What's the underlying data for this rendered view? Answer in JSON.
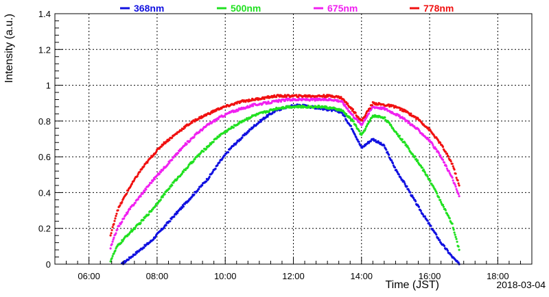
{
  "chart_data": {
    "type": "scatter",
    "title": "",
    "xlabel": "Time (JST)",
    "ylabel": "Intensity (a.u.)",
    "date_label": "2018-03-04",
    "xlim": [
      "05:00",
      "19:00"
    ],
    "ylim": [
      0,
      1.4
    ],
    "x_ticks": [
      "06:00",
      "08:00",
      "10:00",
      "12:00",
      "14:00",
      "16:00",
      "18:00"
    ],
    "y_ticks": [
      "0",
      "0.2",
      "0.4",
      "0.6",
      "0.8",
      "1",
      "1.2",
      "1.4"
    ],
    "grid": true,
    "legend_position": "top",
    "series": [
      {
        "name": "368nm",
        "color": "#1010e0",
        "points": [
          [
            "06:58",
            0.0
          ],
          [
            "07:30",
            0.08
          ],
          [
            "07:50",
            0.13
          ],
          [
            "08:10",
            0.2
          ],
          [
            "08:30",
            0.27
          ],
          [
            "08:50",
            0.34
          ],
          [
            "09:10",
            0.41
          ],
          [
            "09:30",
            0.48
          ],
          [
            "09:50",
            0.57
          ],
          [
            "10:10",
            0.65
          ],
          [
            "10:30",
            0.71
          ],
          [
            "10:50",
            0.77
          ],
          [
            "11:10",
            0.82
          ],
          [
            "11:30",
            0.86
          ],
          [
            "11:50",
            0.88
          ],
          [
            "12:10",
            0.89
          ],
          [
            "12:30",
            0.88
          ],
          [
            "12:50",
            0.87
          ],
          [
            "13:10",
            0.86
          ],
          [
            "13:25",
            0.85
          ],
          [
            "13:45",
            0.75
          ],
          [
            "14:00",
            0.65
          ],
          [
            "14:20",
            0.7
          ],
          [
            "14:40",
            0.66
          ],
          [
            "15:00",
            0.53
          ],
          [
            "15:20",
            0.43
          ],
          [
            "15:40",
            0.32
          ],
          [
            "16:00",
            0.22
          ],
          [
            "16:20",
            0.12
          ],
          [
            "16:40",
            0.04
          ],
          [
            "16:52",
            0.0
          ]
        ]
      },
      {
        "name": "500nm",
        "color": "#20e020",
        "points": [
          [
            "06:38",
            0.02
          ],
          [
            "06:50",
            0.1
          ],
          [
            "07:10",
            0.17
          ],
          [
            "07:30",
            0.23
          ],
          [
            "07:50",
            0.3
          ],
          [
            "08:10",
            0.38
          ],
          [
            "08:30",
            0.46
          ],
          [
            "08:50",
            0.53
          ],
          [
            "09:10",
            0.6
          ],
          [
            "09:30",
            0.66
          ],
          [
            "09:50",
            0.72
          ],
          [
            "10:10",
            0.76
          ],
          [
            "10:30",
            0.8
          ],
          [
            "10:50",
            0.83
          ],
          [
            "11:10",
            0.85
          ],
          [
            "11:30",
            0.87
          ],
          [
            "11:50",
            0.88
          ],
          [
            "12:10",
            0.88
          ],
          [
            "12:30",
            0.88
          ],
          [
            "12:50",
            0.88
          ],
          [
            "13:10",
            0.87
          ],
          [
            "13:25",
            0.86
          ],
          [
            "13:45",
            0.8
          ],
          [
            "14:00",
            0.72
          ],
          [
            "14:20",
            0.83
          ],
          [
            "14:40",
            0.82
          ],
          [
            "15:00",
            0.74
          ],
          [
            "15:20",
            0.66
          ],
          [
            "15:40",
            0.57
          ],
          [
            "16:00",
            0.47
          ],
          [
            "16:20",
            0.35
          ],
          [
            "16:40",
            0.22
          ],
          [
            "16:52",
            0.08
          ]
        ]
      },
      {
        "name": "675nm",
        "color": "#f020f0",
        "points": [
          [
            "06:38",
            0.09
          ],
          [
            "06:50",
            0.2
          ],
          [
            "07:10",
            0.3
          ],
          [
            "07:30",
            0.38
          ],
          [
            "07:50",
            0.46
          ],
          [
            "08:10",
            0.53
          ],
          [
            "08:30",
            0.6
          ],
          [
            "08:50",
            0.67
          ],
          [
            "09:10",
            0.73
          ],
          [
            "09:30",
            0.78
          ],
          [
            "09:50",
            0.82
          ],
          [
            "10:10",
            0.85
          ],
          [
            "10:30",
            0.87
          ],
          [
            "10:50",
            0.89
          ],
          [
            "11:10",
            0.9
          ],
          [
            "11:30",
            0.91
          ],
          [
            "11:50",
            0.92
          ],
          [
            "12:10",
            0.92
          ],
          [
            "12:30",
            0.92
          ],
          [
            "12:50",
            0.92
          ],
          [
            "13:10",
            0.92
          ],
          [
            "13:25",
            0.91
          ],
          [
            "13:45",
            0.83
          ],
          [
            "14:00",
            0.78
          ],
          [
            "14:20",
            0.88
          ],
          [
            "14:40",
            0.87
          ],
          [
            "15:00",
            0.84
          ],
          [
            "15:20",
            0.8
          ],
          [
            "15:40",
            0.75
          ],
          [
            "16:00",
            0.69
          ],
          [
            "16:20",
            0.6
          ],
          [
            "16:40",
            0.48
          ],
          [
            "16:52",
            0.38
          ]
        ]
      },
      {
        "name": "778nm",
        "color": "#f01010",
        "points": [
          [
            "06:38",
            0.16
          ],
          [
            "06:50",
            0.3
          ],
          [
            "07:10",
            0.42
          ],
          [
            "07:30",
            0.52
          ],
          [
            "07:50",
            0.6
          ],
          [
            "08:10",
            0.67
          ],
          [
            "08:30",
            0.72
          ],
          [
            "08:50",
            0.77
          ],
          [
            "09:10",
            0.81
          ],
          [
            "09:30",
            0.84
          ],
          [
            "09:50",
            0.87
          ],
          [
            "10:10",
            0.89
          ],
          [
            "10:30",
            0.91
          ],
          [
            "10:50",
            0.92
          ],
          [
            "11:10",
            0.93
          ],
          [
            "11:30",
            0.94
          ],
          [
            "11:50",
            0.94
          ],
          [
            "12:10",
            0.94
          ],
          [
            "12:30",
            0.94
          ],
          [
            "12:50",
            0.94
          ],
          [
            "13:10",
            0.94
          ],
          [
            "13:25",
            0.93
          ],
          [
            "13:45",
            0.86
          ],
          [
            "14:00",
            0.8
          ],
          [
            "14:20",
            0.9
          ],
          [
            "14:40",
            0.89
          ],
          [
            "15:00",
            0.88
          ],
          [
            "15:20",
            0.85
          ],
          [
            "15:40",
            0.81
          ],
          [
            "16:00",
            0.75
          ],
          [
            "16:20",
            0.67
          ],
          [
            "16:40",
            0.56
          ],
          [
            "16:52",
            0.44
          ]
        ]
      }
    ]
  }
}
